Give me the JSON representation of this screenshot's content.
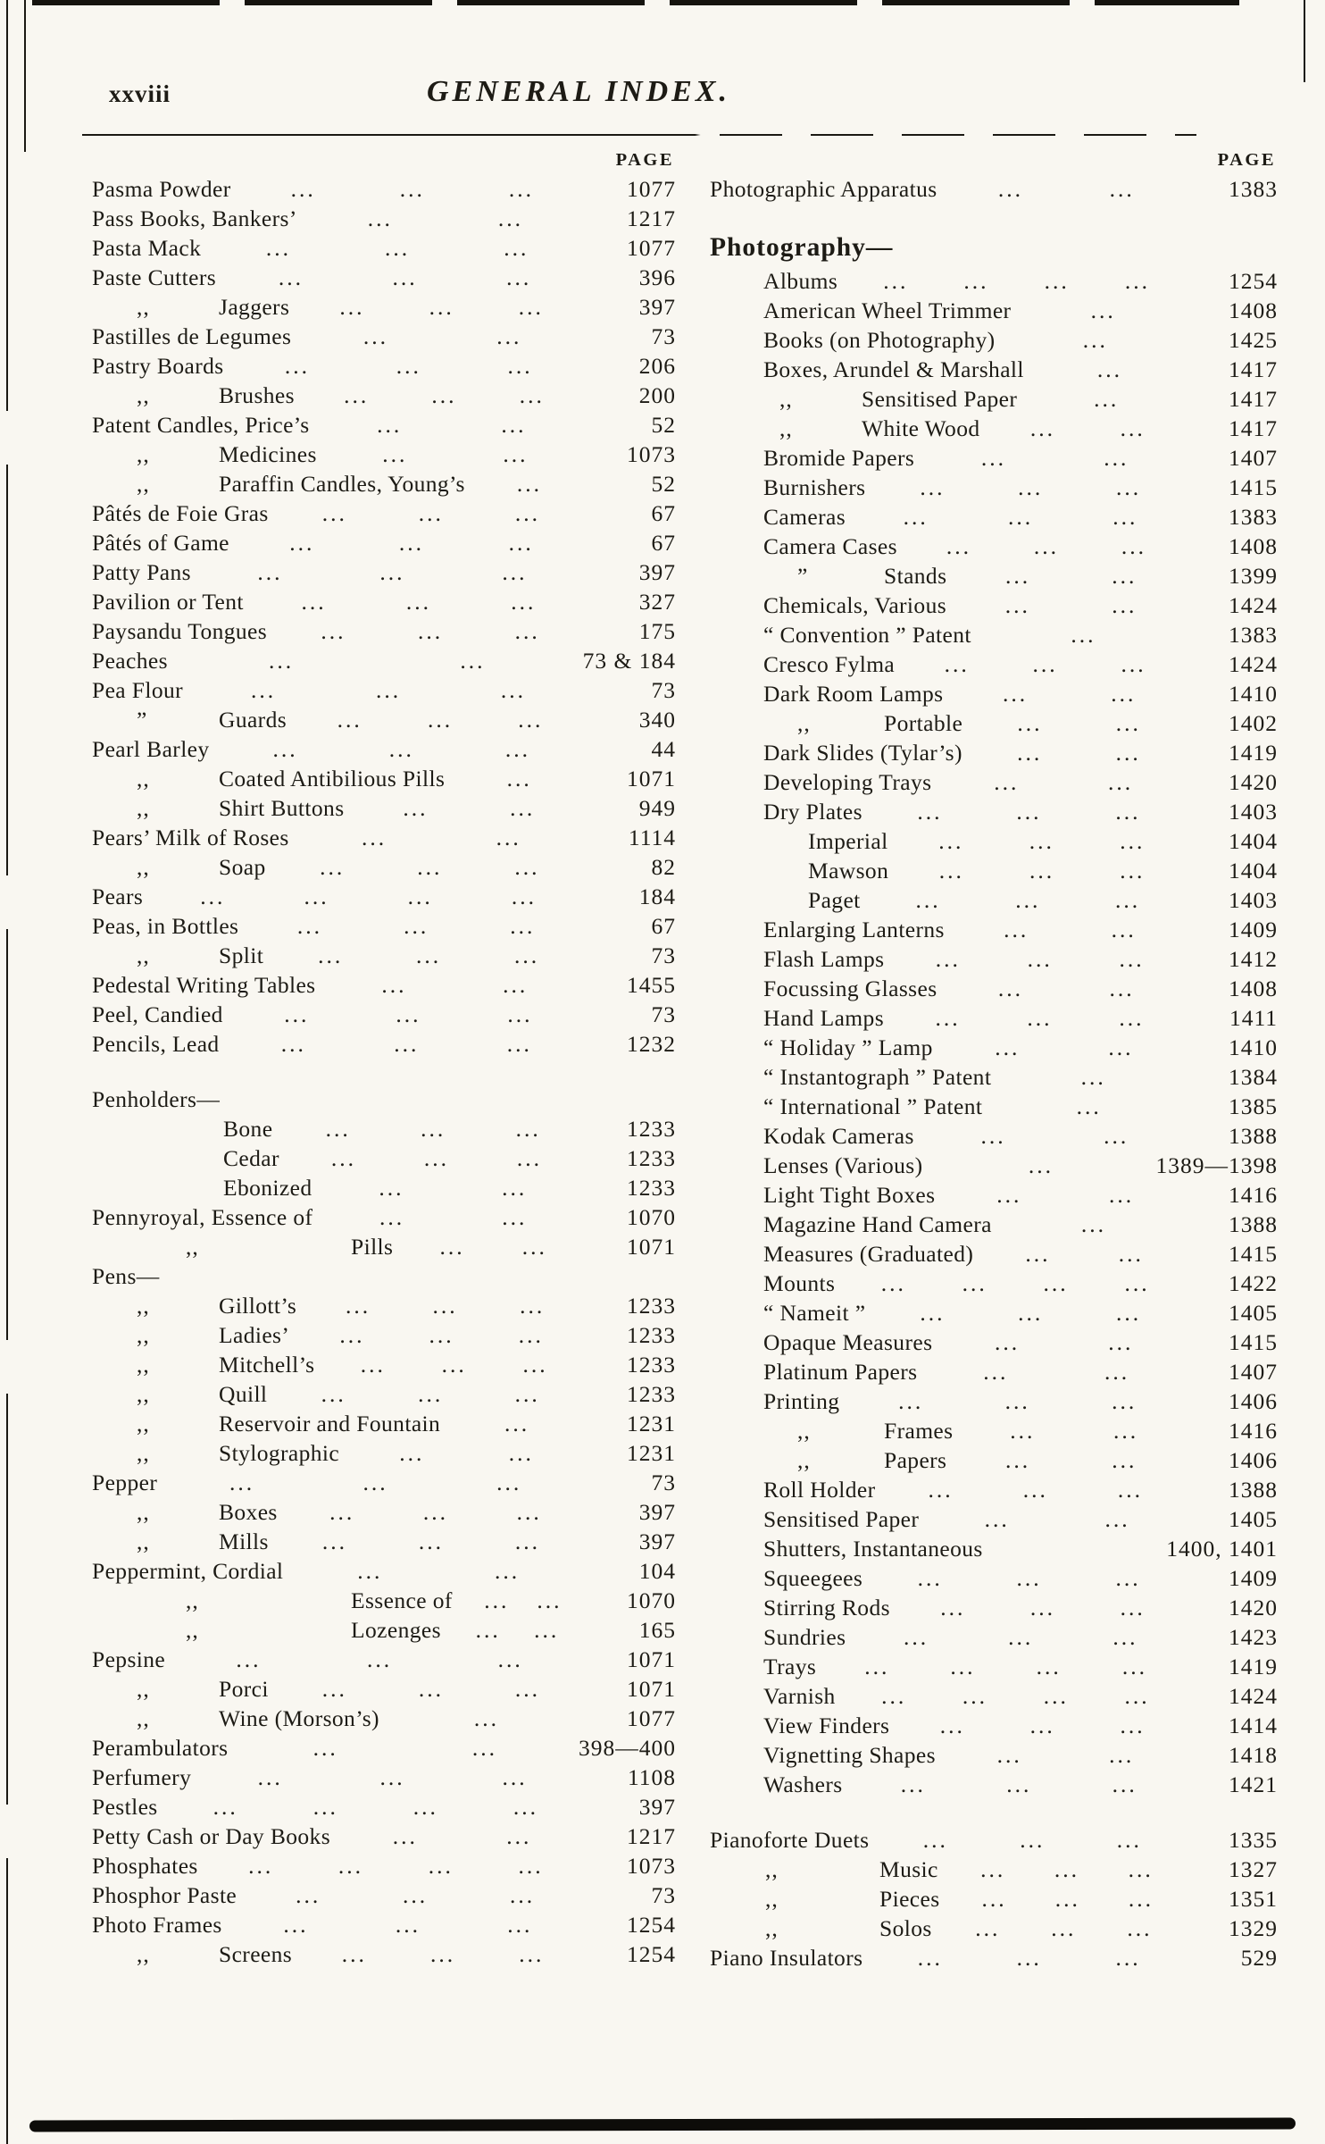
{
  "theme": {
    "paper_color": "#f9f7f1",
    "ink_color": "#1d1b15"
  },
  "page": {
    "folio": "xxviii",
    "title": "GENERAL INDEX.",
    "page_col_header": "PAGE"
  },
  "columns": {
    "left": {
      "sections": [
        {
          "rows": [
            {
              "t": "Pasma Powder",
              "lv": 0,
              "dots": "... ... ...",
              "p": "1077"
            },
            {
              "t": "Pass Books, Bankers’",
              "lv": 0,
              "dots": "... ...",
              "p": "1217"
            },
            {
              "t": "Pasta Mack",
              "lv": 0,
              "dots": "... ... ...",
              "p": "1077"
            },
            {
              "t": "Paste Cutters",
              "lv": 0,
              "dots": "... ... ...",
              "p": "396"
            },
            {
              "d": ",,",
              "t": "Jaggers",
              "lv": 1,
              "dots": "... ... ...",
              "p": "397"
            },
            {
              "t": "Pastilles de Legumes",
              "lv": 0,
              "dots": "... ...",
              "p": "73"
            },
            {
              "t": "Pastry Boards",
              "lv": 0,
              "dots": "... ... ...",
              "p": "206"
            },
            {
              "d": ",,",
              "t": "Brushes",
              "lv": 1,
              "dots": "... ... ...",
              "p": "200"
            },
            {
              "t": "Patent Candles, Price’s",
              "lv": 0,
              "dots": "... ...",
              "p": "52"
            },
            {
              "d": ",,",
              "t": "Medicines",
              "lv": 1,
              "dots": "... ...",
              "p": "1073"
            },
            {
              "d": ",,",
              "t": "Paraffin Candles, Young’s",
              "lv": 1,
              "dots": "...",
              "p": "52"
            },
            {
              "t": "Pâtés de Foie Gras",
              "lv": 0,
              "dots": "... ... ...",
              "p": "67"
            },
            {
              "t": "Pâtés of Game",
              "lv": 0,
              "dots": "... ... ...",
              "p": "67"
            },
            {
              "t": "Patty Pans",
              "lv": 0,
              "dots": "... ... ...",
              "p": "397"
            },
            {
              "t": "Pavilion or Tent",
              "lv": 0,
              "dots": "... ... ...",
              "p": "327"
            },
            {
              "t": "Paysandu Tongues",
              "lv": 0,
              "dots": "... ... ...",
              "p": "175"
            },
            {
              "t": "Peaches",
              "lv": 0,
              "dots": "... ...",
              "p": "73 & 184"
            },
            {
              "t": "Pea Flour",
              "lv": 0,
              "dots": "... ... ...",
              "p": "73"
            },
            {
              "d": "”",
              "t": "Guards",
              "lv": 1,
              "dots": "... ... ...",
              "p": "340"
            },
            {
              "t": "Pearl Barley",
              "lv": 0,
              "dots": "... ... ...",
              "p": "44"
            },
            {
              "d": ",,",
              "t": "Coated Antibilious Pills",
              "lv": 1,
              "dots": "...",
              "p": "1071"
            },
            {
              "d": ",,",
              "t": "Shirt Buttons",
              "lv": 1,
              "dots": "... ...",
              "p": "949"
            },
            {
              "t": "Pears’ Milk of Roses",
              "lv": 0,
              "dots": "... ...",
              "p": "1114"
            },
            {
              "d": ",,",
              "t": "Soap",
              "lv": 1,
              "dots": "... ... ...",
              "p": "82"
            },
            {
              "t": "Pears",
              "lv": 0,
              "dots": "... ... ... ...",
              "p": "184"
            },
            {
              "t": "Peas, in Bottles",
              "lv": 0,
              "dots": "... ... ...",
              "p": "67"
            },
            {
              "d": ",,",
              "t": "Split",
              "lv": 1,
              "dots": "... ... ...",
              "p": "73"
            },
            {
              "t": "Pedestal Writing Tables",
              "lv": 0,
              "dots": "... ...",
              "p": "1455"
            },
            {
              "t": "Peel, Candied",
              "lv": 0,
              "dots": "... ... ...",
              "p": "73"
            },
            {
              "t": "Pencils, Lead",
              "lv": 0,
              "dots": "... ... ...",
              "p": "1232"
            }
          ]
        },
        {
          "rows": [
            {
              "t": "Penholders—",
              "lv": 0,
              "head": true
            },
            {
              "t": "Bone",
              "lv": 2,
              "dots": "... ... ...",
              "p": "1233"
            },
            {
              "t": "Cedar",
              "lv": 2,
              "dots": "... ... ...",
              "p": "1233"
            },
            {
              "t": "Ebonized",
              "lv": 2,
              "dots": "... ...",
              "p": "1233"
            },
            {
              "t": "Pennyroyal, Essence of",
              "lv": 0,
              "dots": "... ...",
              "p": "1070"
            },
            {
              "d": ",,",
              "t": "Pills",
              "lv": 3,
              "dots": "... ...",
              "p": "1071"
            },
            {
              "t": "Pens—",
              "lv": 0,
              "head": true
            },
            {
              "d": ",,",
              "t": "Gillott’s",
              "lv": 1,
              "dots": "... ... ...",
              "p": "1233"
            },
            {
              "d": ",,",
              "t": "Ladies’",
              "lv": 1,
              "dots": "... ... ...",
              "p": "1233"
            },
            {
              "d": ",,",
              "t": "Mitchell’s",
              "lv": 1,
              "dots": "... ... ...",
              "p": "1233"
            },
            {
              "d": ",,",
              "t": "Quill",
              "lv": 1,
              "dots": "... ... ...",
              "p": "1233"
            },
            {
              "d": ",,",
              "t": "Reservoir and Fountain",
              "lv": 1,
              "dots": "...",
              "p": "1231"
            },
            {
              "d": ",,",
              "t": "Stylographic",
              "lv": 1,
              "dots": "... ...",
              "p": "1231"
            },
            {
              "t": "Pepper",
              "lv": 0,
              "dots": "... ... ...",
              "p": "73"
            },
            {
              "d": ",,",
              "t": "Boxes",
              "lv": 1,
              "dots": "... ... ...",
              "p": "397"
            },
            {
              "d": ",,",
              "t": "Mills",
              "lv": 1,
              "dots": "... ... ...",
              "p": "397"
            },
            {
              "t": "Peppermint, Cordial",
              "lv": 0,
              "dots": "... ...",
              "p": "104"
            },
            {
              "d": ",,",
              "t": "Essence of",
              "lv": 3,
              "dots": "... ...",
              "p": "1070"
            },
            {
              "d": ",,",
              "t": "Lozenges",
              "lv": 3,
              "dots": "... ...",
              "p": "165"
            },
            {
              "t": "Pepsine",
              "lv": 0,
              "dots": "... ... ...",
              "p": "1071"
            },
            {
              "d": ",,",
              "t": "Porci",
              "lv": 1,
              "dots": "... ... ...",
              "p": "1071"
            },
            {
              "d": ",,",
              "t": "Wine (Morson’s)",
              "lv": 1,
              "dots": "...",
              "p": "1077"
            },
            {
              "t": "Perambulators",
              "lv": 0,
              "dots": "... ...",
              "p": "398—400"
            },
            {
              "t": "Perfumery",
              "lv": 0,
              "dots": "... ... ...",
              "p": "1108"
            },
            {
              "t": "Pestles",
              "lv": 0,
              "dots": "... ... ... ...",
              "p": "397"
            },
            {
              "t": "Petty Cash or Day Books",
              "lv": 0,
              "dots": "... ...",
              "p": "1217"
            },
            {
              "t": "Phosphates",
              "lv": 0,
              "dots": "... ... ... ...",
              "p": "1073"
            },
            {
              "t": "Phosphor Paste",
              "lv": 0,
              "dots": "... ... ...",
              "p": "73"
            },
            {
              "t": "Photo Frames",
              "lv": 0,
              "dots": "... ... ...",
              "p": "1254"
            },
            {
              "d": ",,",
              "t": "Screens",
              "lv": 1,
              "dots": "... ... ...",
              "p": "1254"
            }
          ]
        }
      ]
    },
    "right": {
      "sections": [
        {
          "rows": [
            {
              "t": "Photographic Apparatus",
              "lv": 0,
              "dots": "... ...",
              "p": "1383"
            }
          ]
        },
        {
          "rows": [
            {
              "t": "Photography—",
              "lv": 0,
              "head": true,
              "bold": true
            },
            {
              "t": "Albums",
              "lv": 1,
              "dots": "... ... ... ...",
              "p": "1254"
            },
            {
              "t": "American Wheel Trimmer",
              "lv": 1,
              "dots": "...",
              "p": "1408"
            },
            {
              "t": "Books (on Photography)",
              "lv": 1,
              "dots": "...",
              "p": "1425"
            },
            {
              "t": "Boxes, Arundel & Marshall",
              "lv": 1,
              "dots": "...",
              "p": "1417"
            },
            {
              "d": ",,",
              "t": "Sensitised Paper",
              "lv": 2,
              "dots": "...",
              "p": "1417"
            },
            {
              "d": ",,",
              "t": "White Wood",
              "lv": 2,
              "dots": "... ...",
              "p": "1417"
            },
            {
              "t": "Bromide Papers",
              "lv": 1,
              "dots": "... ...",
              "p": "1407"
            },
            {
              "t": "Burnishers",
              "lv": 1,
              "dots": "... ... ...",
              "p": "1415"
            },
            {
              "t": "Cameras",
              "lv": 1,
              "dots": "... ... ...",
              "p": "1383"
            },
            {
              "t": "Camera Cases",
              "lv": 1,
              "dots": "... ... ...",
              "p": "1408"
            },
            {
              "d": "”",
              "t": "Stands",
              "lv": 3,
              "dots": "... ...",
              "p": "1399"
            },
            {
              "t": "Chemicals, Various",
              "lv": 1,
              "dots": "... ...",
              "p": "1424"
            },
            {
              "t": "“ Convention ” Patent",
              "lv": 1,
              "dots": "...",
              "p": "1383"
            },
            {
              "t": "Cresco Fylma",
              "lv": 1,
              "dots": "... ... ...",
              "p": "1424"
            },
            {
              "t": "Dark Room Lamps",
              "lv": 1,
              "dots": "... ...",
              "p": "1410"
            },
            {
              "d": ",,",
              "t": "Portable",
              "lv": 3,
              "dots": "... ...",
              "p": "1402"
            },
            {
              "t": "Dark Slides (Tylar’s)",
              "lv": 1,
              "dots": "... ...",
              "p": "1419"
            },
            {
              "t": "Developing Trays",
              "lv": 1,
              "dots": "... ...",
              "p": "1420"
            },
            {
              "t": "Dry Plates",
              "lv": 1,
              "dots": "... ... ...",
              "p": "1403"
            },
            {
              "t": "Imperial",
              "lv": 4,
              "dots": "... ... ...",
              "p": "1404"
            },
            {
              "t": "Mawson",
              "lv": 4,
              "dots": "... ... ...",
              "p": "1404"
            },
            {
              "t": "Paget",
              "lv": 4,
              "dots": "... ... ...",
              "p": "1403"
            },
            {
              "t": "Enlarging Lanterns",
              "lv": 1,
              "dots": "... ...",
              "p": "1409"
            },
            {
              "t": "Flash Lamps",
              "lv": 1,
              "dots": "... ... ...",
              "p": "1412"
            },
            {
              "t": "Focussing Glasses",
              "lv": 1,
              "dots": "... ...",
              "p": "1408"
            },
            {
              "t": "Hand Lamps",
              "lv": 1,
              "dots": "... ... ...",
              "p": "1411"
            },
            {
              "t": "“ Holiday ” Lamp",
              "lv": 1,
              "dots": "... ...",
              "p": "1410"
            },
            {
              "t": "“ Instantograph ” Patent",
              "lv": 1,
              "dots": "...",
              "p": "1384"
            },
            {
              "t": "“ International ” Patent",
              "lv": 1,
              "dots": "...",
              "p": "1385"
            },
            {
              "t": "Kodak Cameras",
              "lv": 1,
              "dots": "... ...",
              "p": "1388"
            },
            {
              "t": "Lenses (Various)",
              "lv": 1,
              "dots": "...",
              "p": "1389—1398"
            },
            {
              "t": "Light Tight Boxes",
              "lv": 1,
              "dots": "... ...",
              "p": "1416"
            },
            {
              "t": "Magazine Hand Camera",
              "lv": 1,
              "dots": "...",
              "p": "1388"
            },
            {
              "t": "Measures (Graduated)",
              "lv": 1,
              "dots": "... ...",
              "p": "1415"
            },
            {
              "t": "Mounts",
              "lv": 1,
              "dots": "... ... ... ...",
              "p": "1422"
            },
            {
              "t": "“ Nameit ”",
              "lv": 1,
              "dots": "... ... ...",
              "p": "1405"
            },
            {
              "t": "Opaque Measures",
              "lv": 1,
              "dots": "... ...",
              "p": "1415"
            },
            {
              "t": "Platinum Papers",
              "lv": 1,
              "dots": "... ...",
              "p": "1407"
            },
            {
              "t": "Printing",
              "lv": 1,
              "dots": "... ... ...",
              "p": "1406"
            },
            {
              "d": ",,",
              "t": "Frames",
              "lv": 3,
              "dots": "... ...",
              "p": "1416"
            },
            {
              "d": ",,",
              "t": "Papers",
              "lv": 3,
              "dots": "... ...",
              "p": "1406"
            },
            {
              "t": "Roll Holder",
              "lv": 1,
              "dots": "... ... ...",
              "p": "1388"
            },
            {
              "t": "Sensitised Paper",
              "lv": 1,
              "dots": "... ...",
              "p": "1405"
            },
            {
              "t": "Shutters, Instantaneous",
              "lv": 1,
              "dots": "",
              "p": "1400, 1401"
            },
            {
              "t": "Squeegees",
              "lv": 1,
              "dots": "... ... ...",
              "p": "1409"
            },
            {
              "t": "Stirring Rods",
              "lv": 1,
              "dots": "... ... ...",
              "p": "1420"
            },
            {
              "t": "Sundries",
              "lv": 1,
              "dots": "... ... ...",
              "p": "1423"
            },
            {
              "t": "Trays",
              "lv": 1,
              "dots": "... ... ... ...",
              "p": "1419"
            },
            {
              "t": "Varnish",
              "lv": 1,
              "dots": "... ... ... ...",
              "p": "1424"
            },
            {
              "t": "View Finders",
              "lv": 1,
              "dots": "... ... ...",
              "p": "1414"
            },
            {
              "t": "Vignetting Shapes",
              "lv": 1,
              "dots": "... ...",
              "p": "1418"
            },
            {
              "t": "Washers",
              "lv": 1,
              "dots": "... ... ...",
              "p": "1421"
            }
          ]
        },
        {
          "rows": [
            {
              "t": "Pianoforte Duets",
              "lv": 0,
              "dots": "... ... ...",
              "p": "1335"
            },
            {
              "d": ",,",
              "t": "Music",
              "lv": 5,
              "dots": "... ... ...",
              "p": "1327"
            },
            {
              "d": ",,",
              "t": "Pieces",
              "lv": 5,
              "dots": "... ... ...",
              "p": "1351"
            },
            {
              "d": ",,",
              "t": "Solos",
              "lv": 5,
              "dots": "... ... ...",
              "p": "1329"
            },
            {
              "t": "Piano Insulators",
              "lv": 0,
              "dots": "... ... ...",
              "p": "529"
            }
          ]
        }
      ]
    }
  }
}
